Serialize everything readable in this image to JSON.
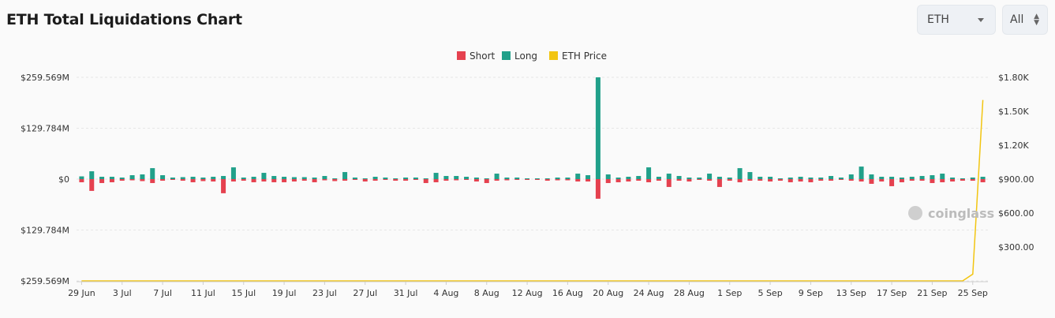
{
  "header": {
    "title": "ETH Total Liquidations Chart",
    "coin_select": "ETH",
    "range_select": "All"
  },
  "watermark": "coinglass",
  "colors": {
    "short": "#e5414f",
    "long": "#21a08a",
    "price": "#f2c511",
    "grid": "#e6e6e6"
  },
  "chart_data": {
    "type": "bar",
    "legend": [
      "Short",
      "Long",
      "ETH Price"
    ],
    "legend_placement": "top-center",
    "left_axis": {
      "labels": [
        "$259.569M",
        "$129.784M",
        "$0",
        "$129.784M",
        "$259.569M"
      ],
      "max": 259.569
    },
    "right_axis": {
      "labels": [
        "$1.80K",
        "$1.50K",
        "$1.20K",
        "$900.00",
        "$600.00",
        "$300.00"
      ],
      "ticks": [
        1800,
        1500,
        1200,
        900,
        600,
        300
      ],
      "min": 0,
      "max": 1800
    },
    "x_tick_labels": [
      "29 Jun",
      "3 Jul",
      "7 Jul",
      "11 Jul",
      "15 Jul",
      "19 Jul",
      "23 Jul",
      "27 Jul",
      "31 Jul",
      "4 Aug",
      "8 Aug",
      "12 Aug",
      "16 Aug",
      "20 Aug",
      "24 Aug",
      "28 Aug",
      "1 Sep",
      "5 Sep",
      "9 Sep",
      "13 Sep",
      "17 Sep",
      "21 Sep",
      "25 Sep"
    ],
    "days": 90,
    "long_values": [
      7,
      20,
      6,
      6,
      4,
      10,
      12,
      28,
      10,
      4,
      5,
      6,
      4,
      6,
      8,
      30,
      4,
      6,
      16,
      8,
      6,
      5,
      5,
      4,
      8,
      2,
      18,
      4,
      2,
      6,
      4,
      2,
      4,
      4,
      2,
      16,
      8,
      8,
      6,
      4,
      2,
      14,
      4,
      4,
      2,
      2,
      2,
      4,
      4,
      14,
      10,
      259.569,
      12,
      4,
      6,
      8,
      30,
      6,
      14,
      8,
      4,
      4,
      14,
      6,
      4,
      28,
      18,
      6,
      6,
      2,
      4,
      6,
      4,
      4,
      8,
      4,
      12,
      32,
      12,
      6,
      6,
      4,
      6,
      8,
      10,
      14,
      4,
      2,
      4,
      6
    ],
    "short_values": [
      -8,
      -30,
      -10,
      -8,
      -4,
      -3,
      -5,
      -10,
      -4,
      -2,
      -4,
      -8,
      -5,
      -6,
      -36,
      -6,
      -4,
      -8,
      -6,
      -8,
      -8,
      -6,
      -4,
      -8,
      -3,
      -5,
      -4,
      -2,
      -6,
      -4,
      -2,
      -4,
      -4,
      -2,
      -10,
      -8,
      -4,
      -3,
      -2,
      -6,
      -10,
      -4,
      -3,
      -2,
      -2,
      -2,
      -4,
      -3,
      -3,
      -6,
      -6,
      -50,
      -10,
      -8,
      -6,
      -4,
      -8,
      -4,
      -20,
      -4,
      -6,
      -2,
      -4,
      -20,
      -4,
      -8,
      -4,
      -4,
      -6,
      -4,
      -8,
      -6,
      -8,
      -4,
      -4,
      -2,
      -4,
      -6,
      -12,
      -6,
      -18,
      -8,
      -4,
      -4,
      -10,
      -8,
      -6,
      -4,
      -4,
      -8
    ],
    "price_values": [
      0,
      0,
      0,
      0,
      0,
      0,
      0,
      0,
      0,
      0,
      0,
      0,
      0,
      0,
      0,
      0,
      0,
      0,
      0,
      0,
      0,
      0,
      0,
      0,
      0,
      0,
      0,
      0,
      0,
      0,
      0,
      0,
      0,
      0,
      0,
      0,
      0,
      0,
      0,
      0,
      0,
      0,
      0,
      0,
      0,
      0,
      0,
      0,
      0,
      0,
      0,
      0,
      0,
      0,
      0,
      0,
      0,
      0,
      0,
      0,
      0,
      0,
      0,
      0,
      0,
      0,
      0,
      0,
      0,
      0,
      0,
      0,
      0,
      0,
      0,
      0,
      0,
      0,
      0,
      0,
      0,
      0,
      0,
      0,
      0,
      0,
      0,
      0,
      60,
      1600
    ]
  }
}
